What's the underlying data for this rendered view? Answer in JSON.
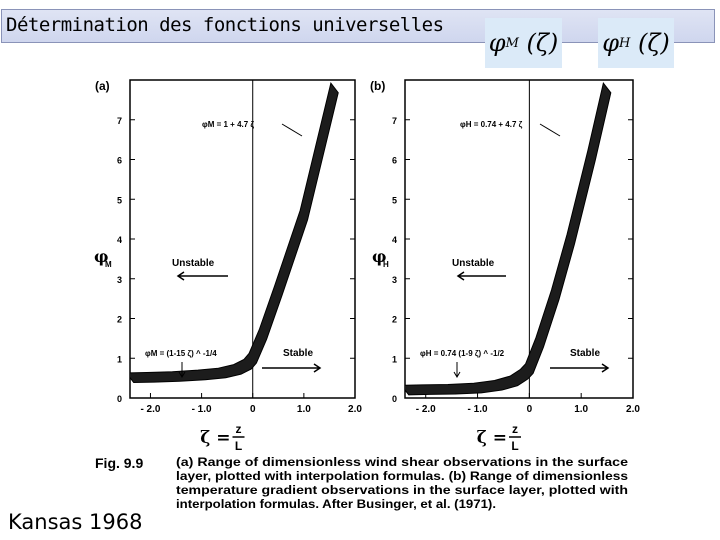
{
  "slide": {
    "title": "Détermination des fonctions universelles",
    "formula_m": {
      "phi": "φ",
      "sub": "M",
      "arg": "(ζ)"
    },
    "formula_h": {
      "phi": "φ",
      "sub": "H",
      "arg": "(ζ)"
    },
    "footer_label": "Kansas 1968"
  },
  "chart_data": [
    {
      "type": "area",
      "panel_label": "(a)",
      "xlim": [
        -2.4,
        2.0
      ],
      "ylim": [
        0,
        8
      ],
      "x_ticks": [
        "- 2.0",
        "- 1.0",
        "0",
        "1.0",
        "2.0"
      ],
      "x_tick_values": [
        -2,
        -1,
        0,
        1,
        2
      ],
      "y_ticks": [
        "0",
        "1",
        "2",
        "3",
        "4",
        "5",
        "6",
        "7"
      ],
      "ylabel": "φM",
      "xlabel": "ζ = z/L",
      "series": [
        {
          "values_center": [
            [
              -2.4,
              0.51
            ],
            [
              -2.0,
              0.52
            ],
            [
              -1.5,
              0.54
            ],
            [
              -1.0,
              0.58
            ],
            [
              -0.6,
              0.63
            ],
            [
              -0.3,
              0.72
            ],
            [
              -0.1,
              0.85
            ],
            [
              0,
              1.0
            ],
            [
              0.2,
              1.6
            ],
            [
              0.5,
              2.7
            ],
            [
              1.0,
              4.6
            ],
            [
              1.3,
              6.2
            ],
            [
              1.6,
              7.8
            ]
          ],
          "band_halfwidth": 0.12
        }
      ],
      "annotations": [
        "φM = 1 + 4.7 ζ",
        "φM = (1-15 ζ) ^ -1/4",
        "Unstable",
        "Stable"
      ],
      "reference_line_x": 0
    },
    {
      "type": "area",
      "panel_label": "(b)",
      "xlim": [
        -2.4,
        2.0
      ],
      "ylim": [
        0,
        8
      ],
      "x_ticks": [
        "- 2.0",
        "- 1.0",
        "0",
        "1.0",
        "2.0"
      ],
      "x_tick_values": [
        -2,
        -1,
        0,
        1,
        2
      ],
      "y_ticks": [
        "0",
        "1",
        "2",
        "3",
        "4",
        "5",
        "6",
        "7"
      ],
      "ylabel": "φH",
      "xlabel": "ζ = z/L",
      "series": [
        {
          "values_center": [
            [
              -2.4,
              0.2
            ],
            [
              -2.0,
              0.21
            ],
            [
              -1.5,
              0.22
            ],
            [
              -1.0,
              0.25
            ],
            [
              -0.6,
              0.32
            ],
            [
              -0.3,
              0.43
            ],
            [
              -0.1,
              0.6
            ],
            [
              0,
              0.74
            ],
            [
              0.2,
              1.4
            ],
            [
              0.5,
              2.6
            ],
            [
              0.8,
              4.0
            ],
            [
              1.2,
              6.1
            ],
            [
              1.5,
              7.8
            ]
          ],
          "band_halfwidth": 0.12
        }
      ],
      "annotations": [
        "φH = 0.74 + 4.7 ζ",
        "φH = 0.74 (1-9 ζ) ^ -1/2",
        "Unstable",
        "Stable"
      ],
      "reference_line_x": 0
    }
  ],
  "caption": {
    "fig_label": "Fig. 9.9",
    "lines": [
      "(a) Range of dimensionless wind shear observations in the surface",
      "layer, plotted with interpolation formulas.  (b) Range of dimensionless",
      "temperature gradient observations in the surface layer, plotted with",
      "interpolation formulas.  After Businger, et al. (1971)."
    ]
  }
}
